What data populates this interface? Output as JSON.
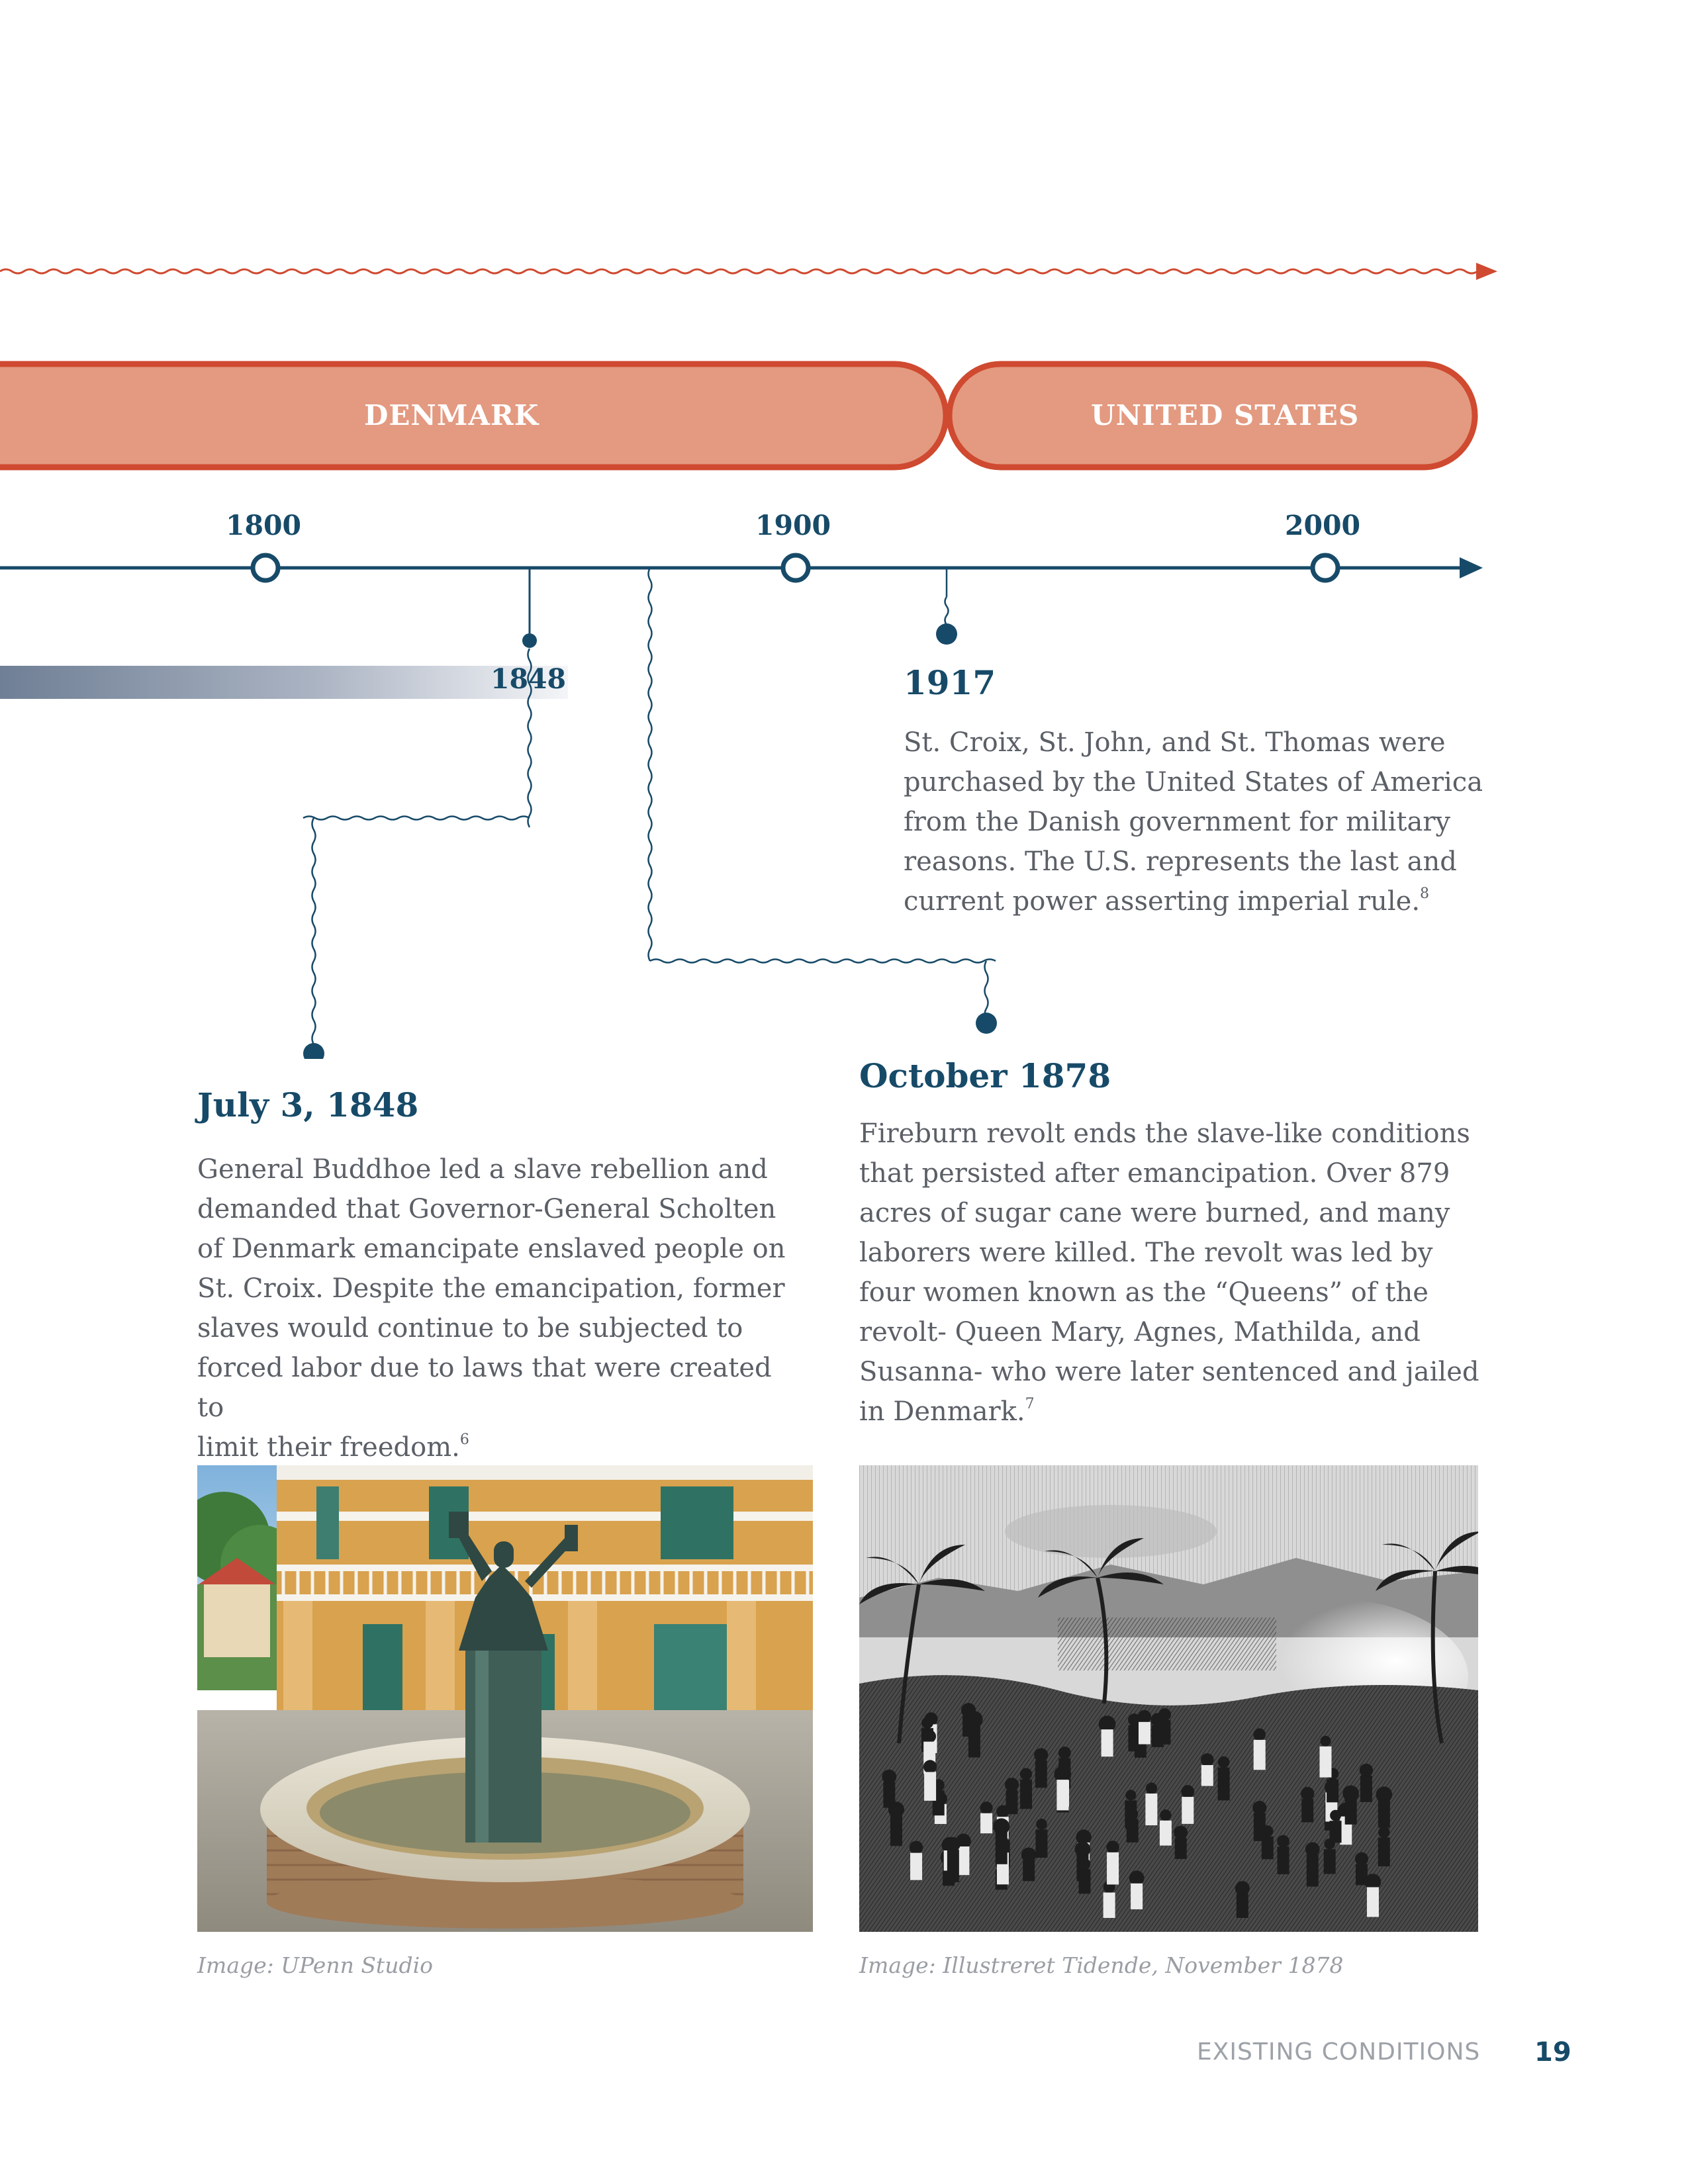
{
  "colors": {
    "navy": "#174a68",
    "rust": "#cf4a30",
    "salmon": "#e39a80",
    "body_text": "#5b5f66",
    "caption": "#9a9ea4"
  },
  "eras": [
    {
      "label": "DENMARK"
    },
    {
      "label": "UNITED STATES"
    }
  ],
  "timeline": {
    "ticks": [
      {
        "label": "1800"
      },
      {
        "label": "1900"
      },
      {
        "label": "2000"
      }
    ],
    "gradient_bar_label": "1848"
  },
  "events": {
    "e1917": {
      "title": "1917",
      "lines": [
        "St. Croix, St. John, and St. Thomas were",
        "purchased by the United States of America",
        "from the Danish government for military",
        "reasons. The U.S. represents the last and",
        "current power asserting imperial rule."
      ],
      "footnote": "8"
    },
    "e1848": {
      "title": "July 3, 1848",
      "lines": [
        "General Buddhoe led a slave rebellion and",
        "demanded that Governor-General Scholten",
        "of Denmark emancipate enslaved people on",
        "St. Croix. Despite the emancipation, former",
        "slaves would continue to be subjected to",
        "forced labor due to laws that were created to",
        "limit their freedom."
      ],
      "footnote": "6"
    },
    "e1878": {
      "title": "October 1878",
      "lines": [
        "Fireburn revolt ends the slave-like conditions",
        "that persisted after emancipation.  Over 879",
        "acres of sugar cane were burned, and many",
        "laborers were killed. The revolt was led by",
        "four women known as the “Queens” of the",
        "revolt- Queen Mary, Agnes, Mathilda, and",
        "Susanna- who were later sentenced and jailed",
        "in Denmark."
      ],
      "footnote": "7"
    }
  },
  "images": {
    "left_caption": "Image: UPenn Studio",
    "right_caption": "Image: Illustreret Tidende, November 1878"
  },
  "footer": {
    "section": "EXISTING CONDITIONS",
    "page": "19"
  }
}
